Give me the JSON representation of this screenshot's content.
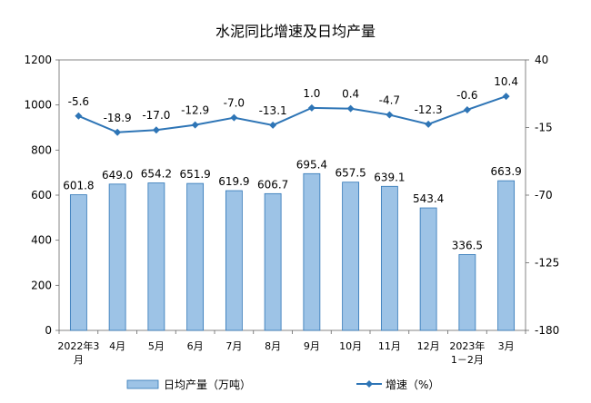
{
  "chart_data": {
    "type": "bar+line",
    "title": "水泥同比增速及日均产量",
    "categories": [
      [
        "2022年3",
        "月"
      ],
      [
        "4月"
      ],
      [
        "5月"
      ],
      [
        "6月"
      ],
      [
        "7月"
      ],
      [
        "8月"
      ],
      [
        "9月"
      ],
      [
        "10月"
      ],
      [
        "11月"
      ],
      [
        "12月"
      ],
      [
        "2023年",
        "1－2月"
      ],
      [
        "3月"
      ]
    ],
    "series": [
      {
        "name": "日均产量（万吨）",
        "type": "bar",
        "axis": "left",
        "values": [
          601.8,
          649.0,
          654.2,
          651.9,
          619.9,
          606.7,
          695.4,
          657.5,
          639.1,
          543.4,
          336.5,
          663.9
        ],
        "labels": [
          "601.8",
          "649.0",
          "654.2",
          "651.9",
          "619.9",
          "606.7",
          "695.4",
          "657.5",
          "639.1",
          "543.4",
          "336.5",
          "663.9"
        ],
        "color": "#9dc3e6"
      },
      {
        "name": "增速（%）",
        "type": "line",
        "axis": "right",
        "values": [
          -5.6,
          -18.9,
          -17.0,
          -12.9,
          -7.0,
          -13.1,
          1.0,
          0.4,
          -4.7,
          -12.3,
          -0.6,
          10.4
        ],
        "labels": [
          "-5.6",
          "-18.9",
          "-17.0",
          "-12.9",
          "-7.0",
          "-13.1",
          "1.0",
          "0.4",
          "-4.7",
          "-12.3",
          "-0.6",
          "10.4"
        ],
        "color": "#2e75b6"
      }
    ],
    "y_left": {
      "min": 0,
      "max": 1200,
      "ticks": [
        "0",
        "200",
        "400",
        "600",
        "800",
        "1000",
        "1200"
      ]
    },
    "y_right": {
      "min": -180,
      "max": 40,
      "ticks": [
        "-180",
        "-125",
        "-70",
        "-15",
        "40"
      ]
    },
    "grid": false,
    "legend_position": "bottom"
  }
}
